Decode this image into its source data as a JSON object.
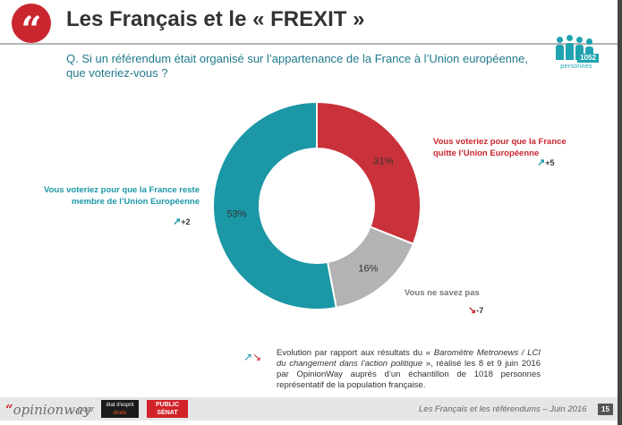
{
  "header": {
    "quote_glyph": "“",
    "title": "Les Français et le « FREXIT »"
  },
  "question": {
    "line1": "Q. Si un référendum était organisé sur l’appartenance de la France à l’Union européenne,",
    "line2": "que voteriez-vous ?"
  },
  "sample": {
    "count": "1052",
    "label": "personnes"
  },
  "chart_data": {
    "type": "pie",
    "donut": true,
    "slices": [
      {
        "label": "Vous voteriez pour que la France quitte l’Union Européenne",
        "value": 31,
        "value_label": "31%",
        "color": "#c9323a",
        "delta": "+5",
        "delta_dir": "up"
      },
      {
        "label": "Vous ne savez pas",
        "value": 16,
        "value_label": "16%",
        "color": "#b3b3b3",
        "delta": "-7",
        "delta_dir": "down"
      },
      {
        "label": "Vous voteriez pour que la France reste membre de l’Union Européenne",
        "value": 53,
        "value_label": "53%",
        "color": "#1b97a6",
        "delta": "+2",
        "delta_dir": "up"
      }
    ]
  },
  "annotations": {
    "leave": {
      "line1": "Vous voteriez pour que la France",
      "line2": "quitte l’Union Européenne",
      "delta": "+5"
    },
    "stay": {
      "line1": "Vous voteriez pour que la France reste",
      "line2": "membre de l’Union Européenne",
      "delta": "+2"
    },
    "dont_know": {
      "line1": "Vous ne savez pas",
      "delta": "-7"
    }
  },
  "legend": {
    "text_prefix": "Evolution par rapport aux résultats du « ",
    "text_italic": "Baromètre Metronews / LCI du changement dans l’action politique",
    "text_suffix": " », réalisé les 8 et 9 juin 2016 par OpinionWay auprès d’un échantillon de 1018 personnes représentatif de la population française."
  },
  "footer": {
    "brand_quote": "“",
    "brand_name": "opinionway",
    "pour": "pour",
    "logo1_line1": "état d'esprit",
    "logo1_line2": "droite",
    "logo2_line1": "PUBLIC",
    "logo2_line2": "SÉNAT",
    "text": "Les Français et les référendums – Juin 2016",
    "page": "15"
  }
}
